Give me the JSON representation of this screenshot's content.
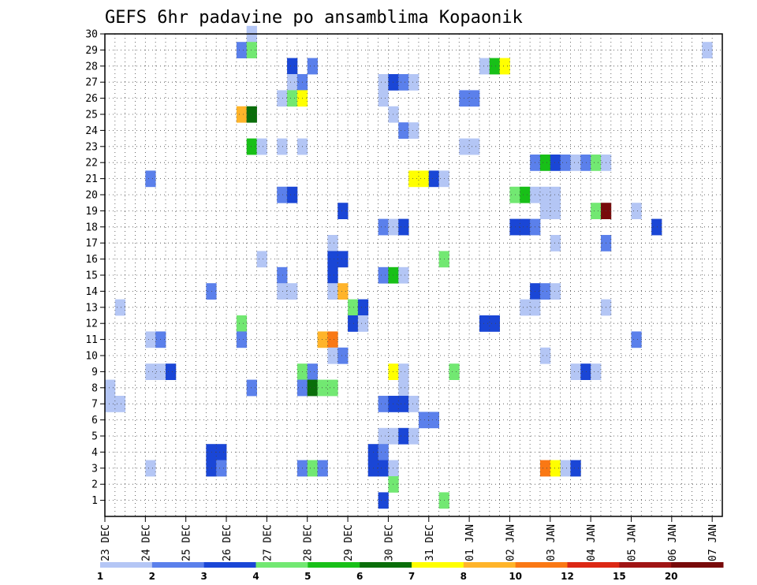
{
  "chart_data": {
    "type": "heatmap",
    "title": "GEFS 6hr padavine po ansamblima Kopaonik",
    "xlabel": "",
    "ylabel": "",
    "x_tick_labels": [
      "23 DEC",
      "24 DEC",
      "25 DEC",
      "26 DEC",
      "27 DEC",
      "28 DEC",
      "29 DEC",
      "30 DEC",
      "31 DEC",
      "01 JAN",
      "02 JAN",
      "03 JAN",
      "04 JAN",
      "05 JAN",
      "06 JAN",
      "07 JAN"
    ],
    "y_tick_labels": [
      "1",
      "2",
      "3",
      "4",
      "5",
      "6",
      "7",
      "8",
      "9",
      "10",
      "11",
      "12",
      "13",
      "14",
      "15",
      "16",
      "17",
      "18",
      "19",
      "20",
      "21",
      "22",
      "23",
      "24",
      "25",
      "26",
      "27",
      "28",
      "29",
      "30"
    ],
    "x_range_days": [
      0,
      15.25
    ],
    "y_range": [
      0,
      30
    ],
    "grid": true,
    "levels": [
      1,
      2,
      3,
      4,
      5,
      6,
      7,
      8,
      10,
      12,
      15,
      20
    ],
    "level_labels": [
      "1",
      "2",
      "3",
      "4",
      "5",
      "6",
      "7",
      "8",
      "10",
      "12",
      "15",
      "20"
    ],
    "colors": [
      "#b4c6f5",
      "#5b80eb",
      "#1a46d6",
      "#72e872",
      "#18c018",
      "#0a6e0a",
      "#ffff00",
      "#ffb42a",
      "#fa7814",
      "#dc2814",
      "#a01414",
      "#780a0a"
    ],
    "cells": [
      [
        26.5,
        30,
        1
      ],
      [
        42.25,
        30,
        1
      ],
      [
        46.0,
        30,
        1
      ],
      [
        26.25,
        29,
        2
      ],
      [
        26.5,
        29,
        4
      ],
      [
        46.0,
        29,
        5
      ],
      [
        46.25,
        29,
        2
      ],
      [
        37.75,
        29,
        1
      ],
      [
        27.5,
        28,
        3
      ],
      [
        28.0,
        28,
        2
      ],
      [
        32.25,
        28,
        1
      ],
      [
        32.5,
        28,
        5
      ],
      [
        32.75,
        28,
        7
      ],
      [
        45.5,
        28,
        1
      ],
      [
        49.5,
        28,
        1
      ],
      [
        49.75,
        28,
        2
      ],
      [
        27.5,
        27,
        1
      ],
      [
        27.75,
        27,
        2
      ],
      [
        29.75,
        27,
        1
      ],
      [
        30.0,
        27,
        3
      ],
      [
        30.25,
        27,
        2
      ],
      [
        30.5,
        27,
        1
      ],
      [
        41.75,
        27,
        1
      ],
      [
        42.0,
        27,
        2
      ],
      [
        27.25,
        26,
        1
      ],
      [
        27.5,
        26,
        4
      ],
      [
        27.75,
        26,
        7
      ],
      [
        29.75,
        26,
        1
      ],
      [
        31.75,
        26,
        2
      ],
      [
        32.0,
        26,
        2
      ],
      [
        26.25,
        25,
        8
      ],
      [
        26.5,
        25,
        6
      ],
      [
        30.0,
        25,
        1
      ],
      [
        48.75,
        25,
        2
      ],
      [
        49.0,
        25,
        5
      ],
      [
        49.25,
        25,
        4
      ],
      [
        49.5,
        25,
        6
      ],
      [
        49.75,
        25,
        5
      ],
      [
        30.25,
        24,
        2
      ],
      [
        30.5,
        24,
        1
      ],
      [
        48.5,
        24,
        2
      ],
      [
        48.75,
        24,
        3
      ],
      [
        49.0,
        24,
        1
      ],
      [
        26.5,
        23,
        5
      ],
      [
        26.75,
        23,
        1
      ],
      [
        27.25,
        23,
        1
      ],
      [
        27.75,
        23,
        1
      ],
      [
        31.75,
        23,
        1
      ],
      [
        32.0,
        23,
        1
      ],
      [
        33.5,
        22,
        2
      ],
      [
        33.75,
        22,
        5
      ],
      [
        34.0,
        22,
        3
      ],
      [
        34.25,
        22,
        2
      ],
      [
        34.5,
        22,
        1
      ],
      [
        34.75,
        22,
        2
      ],
      [
        35.0,
        22,
        4
      ],
      [
        35.25,
        22,
        1
      ],
      [
        24.0,
        21,
        2
      ],
      [
        30.5,
        21,
        7
      ],
      [
        30.75,
        21,
        7
      ],
      [
        31.0,
        21,
        3
      ],
      [
        31.25,
        21,
        1
      ],
      [
        27.25,
        20,
        2
      ],
      [
        27.5,
        20,
        3
      ],
      [
        33.0,
        20,
        4
      ],
      [
        33.25,
        20,
        5
      ],
      [
        33.5,
        20,
        1
      ],
      [
        33.75,
        20,
        1
      ],
      [
        34.0,
        20,
        1
      ],
      [
        48.25,
        20,
        1
      ],
      [
        28.75,
        19,
        3
      ],
      [
        33.75,
        19,
        1
      ],
      [
        34.0,
        19,
        1
      ],
      [
        35.0,
        19,
        4
      ],
      [
        35.25,
        19,
        12
      ],
      [
        36.0,
        19,
        1
      ],
      [
        29.75,
        18,
        2
      ],
      [
        30.0,
        18,
        1
      ],
      [
        30.25,
        18,
        3
      ],
      [
        33.0,
        18,
        3
      ],
      [
        33.25,
        18,
        3
      ],
      [
        33.5,
        18,
        2
      ],
      [
        36.5,
        18,
        3
      ],
      [
        28.5,
        17,
        1
      ],
      [
        34.0,
        17,
        1
      ],
      [
        35.25,
        17,
        2
      ],
      [
        45.5,
        17,
        1
      ],
      [
        45.75,
        17,
        2
      ],
      [
        46.0,
        17,
        2
      ],
      [
        26.75,
        16,
        1
      ],
      [
        28.5,
        16,
        3
      ],
      [
        28.75,
        16,
        3
      ],
      [
        31.25,
        16,
        4
      ],
      [
        27.25,
        15,
        2
      ],
      [
        28.5,
        15,
        3
      ],
      [
        29.75,
        15,
        2
      ],
      [
        30.0,
        15,
        5
      ],
      [
        30.25,
        15,
        1
      ],
      [
        45.5,
        15,
        3
      ],
      [
        45.75,
        15,
        5
      ],
      [
        46.0,
        15,
        2
      ],
      [
        46.25,
        15,
        1
      ],
      [
        48.25,
        15,
        2
      ],
      [
        49.25,
        15,
        7
      ],
      [
        49.5,
        15,
        9
      ],
      [
        49.75,
        15,
        2
      ],
      [
        25.5,
        14,
        2
      ],
      [
        27.25,
        14,
        1
      ],
      [
        27.5,
        14,
        1
      ],
      [
        28.5,
        14,
        1
      ],
      [
        28.75,
        14,
        8
      ],
      [
        33.5,
        14,
        3
      ],
      [
        33.75,
        14,
        2
      ],
      [
        34.0,
        14,
        1
      ],
      [
        45.75,
        14,
        1
      ],
      [
        48.25,
        14,
        1
      ],
      [
        48.5,
        14,
        2
      ],
      [
        23.25,
        13,
        1
      ],
      [
        29.0,
        13,
        4
      ],
      [
        29.25,
        13,
        3
      ],
      [
        33.25,
        13,
        1
      ],
      [
        33.5,
        13,
        1
      ],
      [
        35.25,
        13,
        1
      ],
      [
        48.5,
        13,
        11
      ],
      [
        48.75,
        13,
        2
      ],
      [
        26.25,
        12,
        4
      ],
      [
        29.0,
        12,
        3
      ],
      [
        29.25,
        12,
        1
      ],
      [
        32.25,
        12,
        3
      ],
      [
        32.5,
        12,
        3
      ],
      [
        49.0,
        12,
        1
      ],
      [
        49.25,
        12,
        1
      ],
      [
        24.0,
        11,
        1
      ],
      [
        24.25,
        11,
        2
      ],
      [
        26.25,
        11,
        2
      ],
      [
        28.25,
        11,
        8
      ],
      [
        28.5,
        11,
        9
      ],
      [
        36.0,
        11,
        2
      ],
      [
        49.0,
        11,
        3
      ],
      [
        49.25,
        11,
        1
      ],
      [
        28.5,
        10,
        1
      ],
      [
        28.75,
        10,
        2
      ],
      [
        33.75,
        10,
        1
      ],
      [
        24.0,
        9,
        1
      ],
      [
        24.25,
        9,
        1
      ],
      [
        24.5,
        9,
        3
      ],
      [
        27.75,
        9,
        4
      ],
      [
        28.0,
        9,
        2
      ],
      [
        30.0,
        9,
        7
      ],
      [
        30.25,
        9,
        1
      ],
      [
        31.5,
        9,
        4
      ],
      [
        34.5,
        9,
        1
      ],
      [
        34.75,
        9,
        3
      ],
      [
        35.0,
        9,
        1
      ],
      [
        45.5,
        9,
        3
      ],
      [
        45.75,
        9,
        4
      ],
      [
        46.0,
        9,
        2
      ],
      [
        46.25,
        9,
        1
      ],
      [
        46.75,
        9,
        1
      ],
      [
        47.0,
        9,
        2
      ],
      [
        47.25,
        9,
        2
      ],
      [
        48.5,
        9,
        1
      ],
      [
        48.75,
        9,
        2
      ],
      [
        49.0,
        9,
        2
      ],
      [
        49.75,
        9,
        1
      ],
      [
        23.0,
        8,
        1
      ],
      [
        26.5,
        8,
        2
      ],
      [
        27.75,
        8,
        2
      ],
      [
        28.0,
        8,
        6
      ],
      [
        28.25,
        8,
        4
      ],
      [
        28.5,
        8,
        4
      ],
      [
        30.25,
        8,
        1
      ],
      [
        23.0,
        7,
        1
      ],
      [
        23.25,
        7,
        1
      ],
      [
        29.75,
        7,
        2
      ],
      [
        30.0,
        7,
        3
      ],
      [
        30.25,
        7,
        3
      ],
      [
        30.5,
        7,
        1
      ],
      [
        49.5,
        7,
        1
      ],
      [
        49.75,
        7,
        1
      ],
      [
        30.75,
        6,
        2
      ],
      [
        31.0,
        6,
        2
      ],
      [
        48.5,
        6,
        7
      ],
      [
        29.75,
        5,
        1
      ],
      [
        30.0,
        5,
        1
      ],
      [
        30.25,
        5,
        3
      ],
      [
        30.5,
        5,
        1
      ],
      [
        45.5,
        5,
        1
      ],
      [
        49.25,
        5,
        1
      ],
      [
        49.5,
        5,
        3
      ],
      [
        49.75,
        5,
        2
      ],
      [
        25.5,
        4,
        3
      ],
      [
        25.75,
        4,
        3
      ],
      [
        29.5,
        4,
        3
      ],
      [
        29.75,
        4,
        2
      ],
      [
        49.25,
        4,
        4
      ],
      [
        49.5,
        4,
        5
      ],
      [
        24.0,
        3,
        1
      ],
      [
        25.5,
        3,
        3
      ],
      [
        25.75,
        3,
        2
      ],
      [
        27.75,
        3,
        2
      ],
      [
        28.0,
        3,
        4
      ],
      [
        28.25,
        3,
        2
      ],
      [
        29.5,
        3,
        3
      ],
      [
        29.75,
        3,
        3
      ],
      [
        30.0,
        3,
        1
      ],
      [
        33.75,
        3,
        9
      ],
      [
        34.0,
        3,
        7
      ],
      [
        34.25,
        3,
        1
      ],
      [
        34.5,
        3,
        3
      ],
      [
        49.25,
        3,
        7
      ],
      [
        49.5,
        3,
        1
      ],
      [
        30.0,
        2,
        4
      ],
      [
        29.75,
        1,
        3
      ],
      [
        31.25,
        1,
        4
      ]
    ]
  }
}
